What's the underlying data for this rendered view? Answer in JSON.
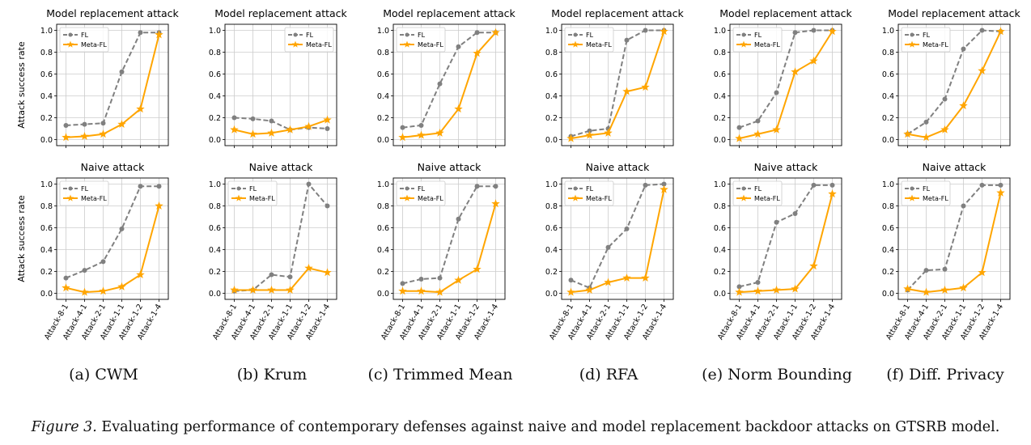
{
  "figure": {
    "caption_prefix": "Figure 3.",
    "caption_text": " Evaluating performance of contemporary defenses against naive and model replacement backdoor attacks on GTSRB model.",
    "ylabel": "Attack success rate",
    "x_categories": [
      "Attack-8-1",
      "Attack-4-1",
      "Attack-2-1",
      "Attack-1-1",
      "Attack-1-2",
      "Attack-1-4"
    ],
    "yticks": [
      "0.0",
      "0.2",
      "0.4",
      "0.6",
      "0.8",
      "1.0"
    ],
    "legend_labels": [
      "FL",
      "Meta-FL"
    ],
    "colors": {
      "fl": "#808080",
      "meta": "#FFA500",
      "grid": "#cccccc",
      "axis": "#000000"
    }
  },
  "chart_data": [
    {
      "type": "line",
      "panel": "(a) CWM",
      "title": "Model replacement attack",
      "ylim": [
        0,
        1
      ],
      "grid": true,
      "legend": "upper-left",
      "categories": [
        "Attack-8-1",
        "Attack-4-1",
        "Attack-2-1",
        "Attack-1-1",
        "Attack-1-2",
        "Attack-1-4"
      ],
      "series": [
        {
          "name": "FL",
          "values": [
            0.13,
            0.14,
            0.15,
            0.62,
            0.98,
            0.98
          ]
        },
        {
          "name": "Meta-FL",
          "values": [
            0.02,
            0.03,
            0.05,
            0.14,
            0.28,
            0.96
          ]
        }
      ]
    },
    {
      "type": "line",
      "panel": "(b) Krum",
      "title": "Model replacement attack",
      "ylim": [
        0,
        1
      ],
      "grid": true,
      "legend": "upper-right",
      "categories": [
        "Attack-8-1",
        "Attack-4-1",
        "Attack-2-1",
        "Attack-1-1",
        "Attack-1-2",
        "Attack-1-4"
      ],
      "series": [
        {
          "name": "FL",
          "values": [
            0.2,
            0.19,
            0.17,
            0.09,
            0.11,
            0.1
          ]
        },
        {
          "name": "Meta-FL",
          "values": [
            0.09,
            0.05,
            0.06,
            0.09,
            0.12,
            0.18
          ]
        }
      ]
    },
    {
      "type": "line",
      "panel": "(c) Trimmed Mean",
      "title": "Model replacement attack",
      "ylim": [
        0,
        1
      ],
      "grid": true,
      "legend": "upper-left",
      "categories": [
        "Attack-8-1",
        "Attack-4-1",
        "Attack-2-1",
        "Attack-1-1",
        "Attack-1-2",
        "Attack-1-4"
      ],
      "series": [
        {
          "name": "FL",
          "values": [
            0.11,
            0.13,
            0.51,
            0.85,
            0.98,
            0.98
          ]
        },
        {
          "name": "Meta-FL",
          "values": [
            0.02,
            0.04,
            0.06,
            0.28,
            0.79,
            0.98
          ]
        }
      ]
    },
    {
      "type": "line",
      "panel": "(d) RFA",
      "title": "Model replacement attack",
      "ylim": [
        0,
        1
      ],
      "grid": true,
      "legend": "upper-left",
      "categories": [
        "Attack-8-1",
        "Attack-4-1",
        "Attack-2-1",
        "Attack-1-1",
        "Attack-1-2",
        "Attack-1-4"
      ],
      "series": [
        {
          "name": "FL",
          "values": [
            0.03,
            0.08,
            0.1,
            0.91,
            1.0,
            1.0
          ]
        },
        {
          "name": "Meta-FL",
          "values": [
            0.01,
            0.04,
            0.06,
            0.44,
            0.48,
            0.99
          ]
        }
      ]
    },
    {
      "type": "line",
      "panel": "(e) Norm Bounding",
      "title": "Model replacement attack",
      "ylim": [
        0,
        1
      ],
      "grid": true,
      "legend": "upper-left",
      "categories": [
        "Attack-8-1",
        "Attack-4-1",
        "Attack-2-1",
        "Attack-1-1",
        "Attack-1-2",
        "Attack-1-4"
      ],
      "series": [
        {
          "name": "FL",
          "values": [
            0.11,
            0.17,
            0.43,
            0.98,
            1.0,
            1.0
          ]
        },
        {
          "name": "Meta-FL",
          "values": [
            0.01,
            0.05,
            0.09,
            0.62,
            0.72,
            0.99
          ]
        }
      ]
    },
    {
      "type": "line",
      "panel": "(f) Diff. Privacy",
      "title": "Model replacement attack",
      "ylim": [
        0,
        1
      ],
      "grid": true,
      "legend": "upper-left",
      "categories": [
        "Attack-8-1",
        "Attack-4-1",
        "Attack-2-1",
        "Attack-1-1",
        "Attack-1-2",
        "Attack-1-4"
      ],
      "series": [
        {
          "name": "FL",
          "values": [
            0.05,
            0.16,
            0.37,
            0.83,
            1.0,
            0.99
          ]
        },
        {
          "name": "Meta-FL",
          "values": [
            0.05,
            0.02,
            0.09,
            0.31,
            0.63,
            0.99
          ]
        }
      ]
    },
    {
      "type": "line",
      "panel": "(a) CWM",
      "title": "Naive attack",
      "ylim": [
        0,
        1
      ],
      "grid": true,
      "legend": "upper-left",
      "categories": [
        "Attack-8-1",
        "Attack-4-1",
        "Attack-2-1",
        "Attack-1-1",
        "Attack-1-2",
        "Attack-1-4"
      ],
      "series": [
        {
          "name": "FL",
          "values": [
            0.14,
            0.21,
            0.29,
            0.59,
            0.98,
            0.98
          ]
        },
        {
          "name": "Meta-FL",
          "values": [
            0.05,
            0.01,
            0.02,
            0.06,
            0.17,
            0.8
          ]
        }
      ]
    },
    {
      "type": "line",
      "panel": "(b) Krum",
      "title": "Naive attack",
      "ylim": [
        0,
        1
      ],
      "grid": true,
      "legend": "upper-left",
      "categories": [
        "Attack-8-1",
        "Attack-4-1",
        "Attack-2-1",
        "Attack-1-1",
        "Attack-1-2",
        "Attack-1-4"
      ],
      "series": [
        {
          "name": "FL",
          "values": [
            0.02,
            0.03,
            0.17,
            0.15,
            1.0,
            0.8
          ]
        },
        {
          "name": "Meta-FL",
          "values": [
            0.03,
            0.03,
            0.03,
            0.03,
            0.23,
            0.19
          ]
        }
      ]
    },
    {
      "type": "line",
      "panel": "(c) Trimmed Mean",
      "title": "Naive attack",
      "ylim": [
        0,
        1
      ],
      "grid": true,
      "legend": "upper-left",
      "categories": [
        "Attack-8-1",
        "Attack-4-1",
        "Attack-2-1",
        "Attack-1-1",
        "Attack-1-2",
        "Attack-1-4"
      ],
      "series": [
        {
          "name": "FL",
          "values": [
            0.09,
            0.13,
            0.14,
            0.68,
            0.98,
            0.98
          ]
        },
        {
          "name": "Meta-FL",
          "values": [
            0.02,
            0.02,
            0.01,
            0.12,
            0.22,
            0.82
          ]
        }
      ]
    },
    {
      "type": "line",
      "panel": "(d) RFA",
      "title": "Naive attack",
      "ylim": [
        0,
        1
      ],
      "grid": true,
      "legend": "upper-left",
      "categories": [
        "Attack-8-1",
        "Attack-4-1",
        "Attack-2-1",
        "Attack-1-1",
        "Attack-1-2",
        "Attack-1-4"
      ],
      "series": [
        {
          "name": "FL",
          "values": [
            0.12,
            0.05,
            0.42,
            0.59,
            0.99,
            1.0
          ]
        },
        {
          "name": "Meta-FL",
          "values": [
            0.01,
            0.03,
            0.1,
            0.14,
            0.14,
            0.95
          ]
        }
      ]
    },
    {
      "type": "line",
      "panel": "(e) Norm Bounding",
      "title": "Naive attack",
      "ylim": [
        0,
        1
      ],
      "grid": true,
      "legend": "upper-left",
      "categories": [
        "Attack-8-1",
        "Attack-4-1",
        "Attack-2-1",
        "Attack-1-1",
        "Attack-1-2",
        "Attack-1-4"
      ],
      "series": [
        {
          "name": "FL",
          "values": [
            0.06,
            0.1,
            0.65,
            0.73,
            0.99,
            0.99
          ]
        },
        {
          "name": "Meta-FL",
          "values": [
            0.01,
            0.02,
            0.03,
            0.04,
            0.25,
            0.91
          ]
        }
      ]
    },
    {
      "type": "line",
      "panel": "(f) Diff. Privacy",
      "title": "Naive attack",
      "ylim": [
        0,
        1
      ],
      "grid": true,
      "legend": "upper-left",
      "categories": [
        "Attack-8-1",
        "Attack-4-1",
        "Attack-2-1",
        "Attack-1-1",
        "Attack-1-2",
        "Attack-1-4"
      ],
      "series": [
        {
          "name": "FL",
          "values": [
            0.03,
            0.21,
            0.22,
            0.8,
            0.99,
            0.99
          ]
        },
        {
          "name": "Meta-FL",
          "values": [
            0.04,
            0.01,
            0.03,
            0.05,
            0.19,
            0.92
          ]
        }
      ]
    }
  ]
}
